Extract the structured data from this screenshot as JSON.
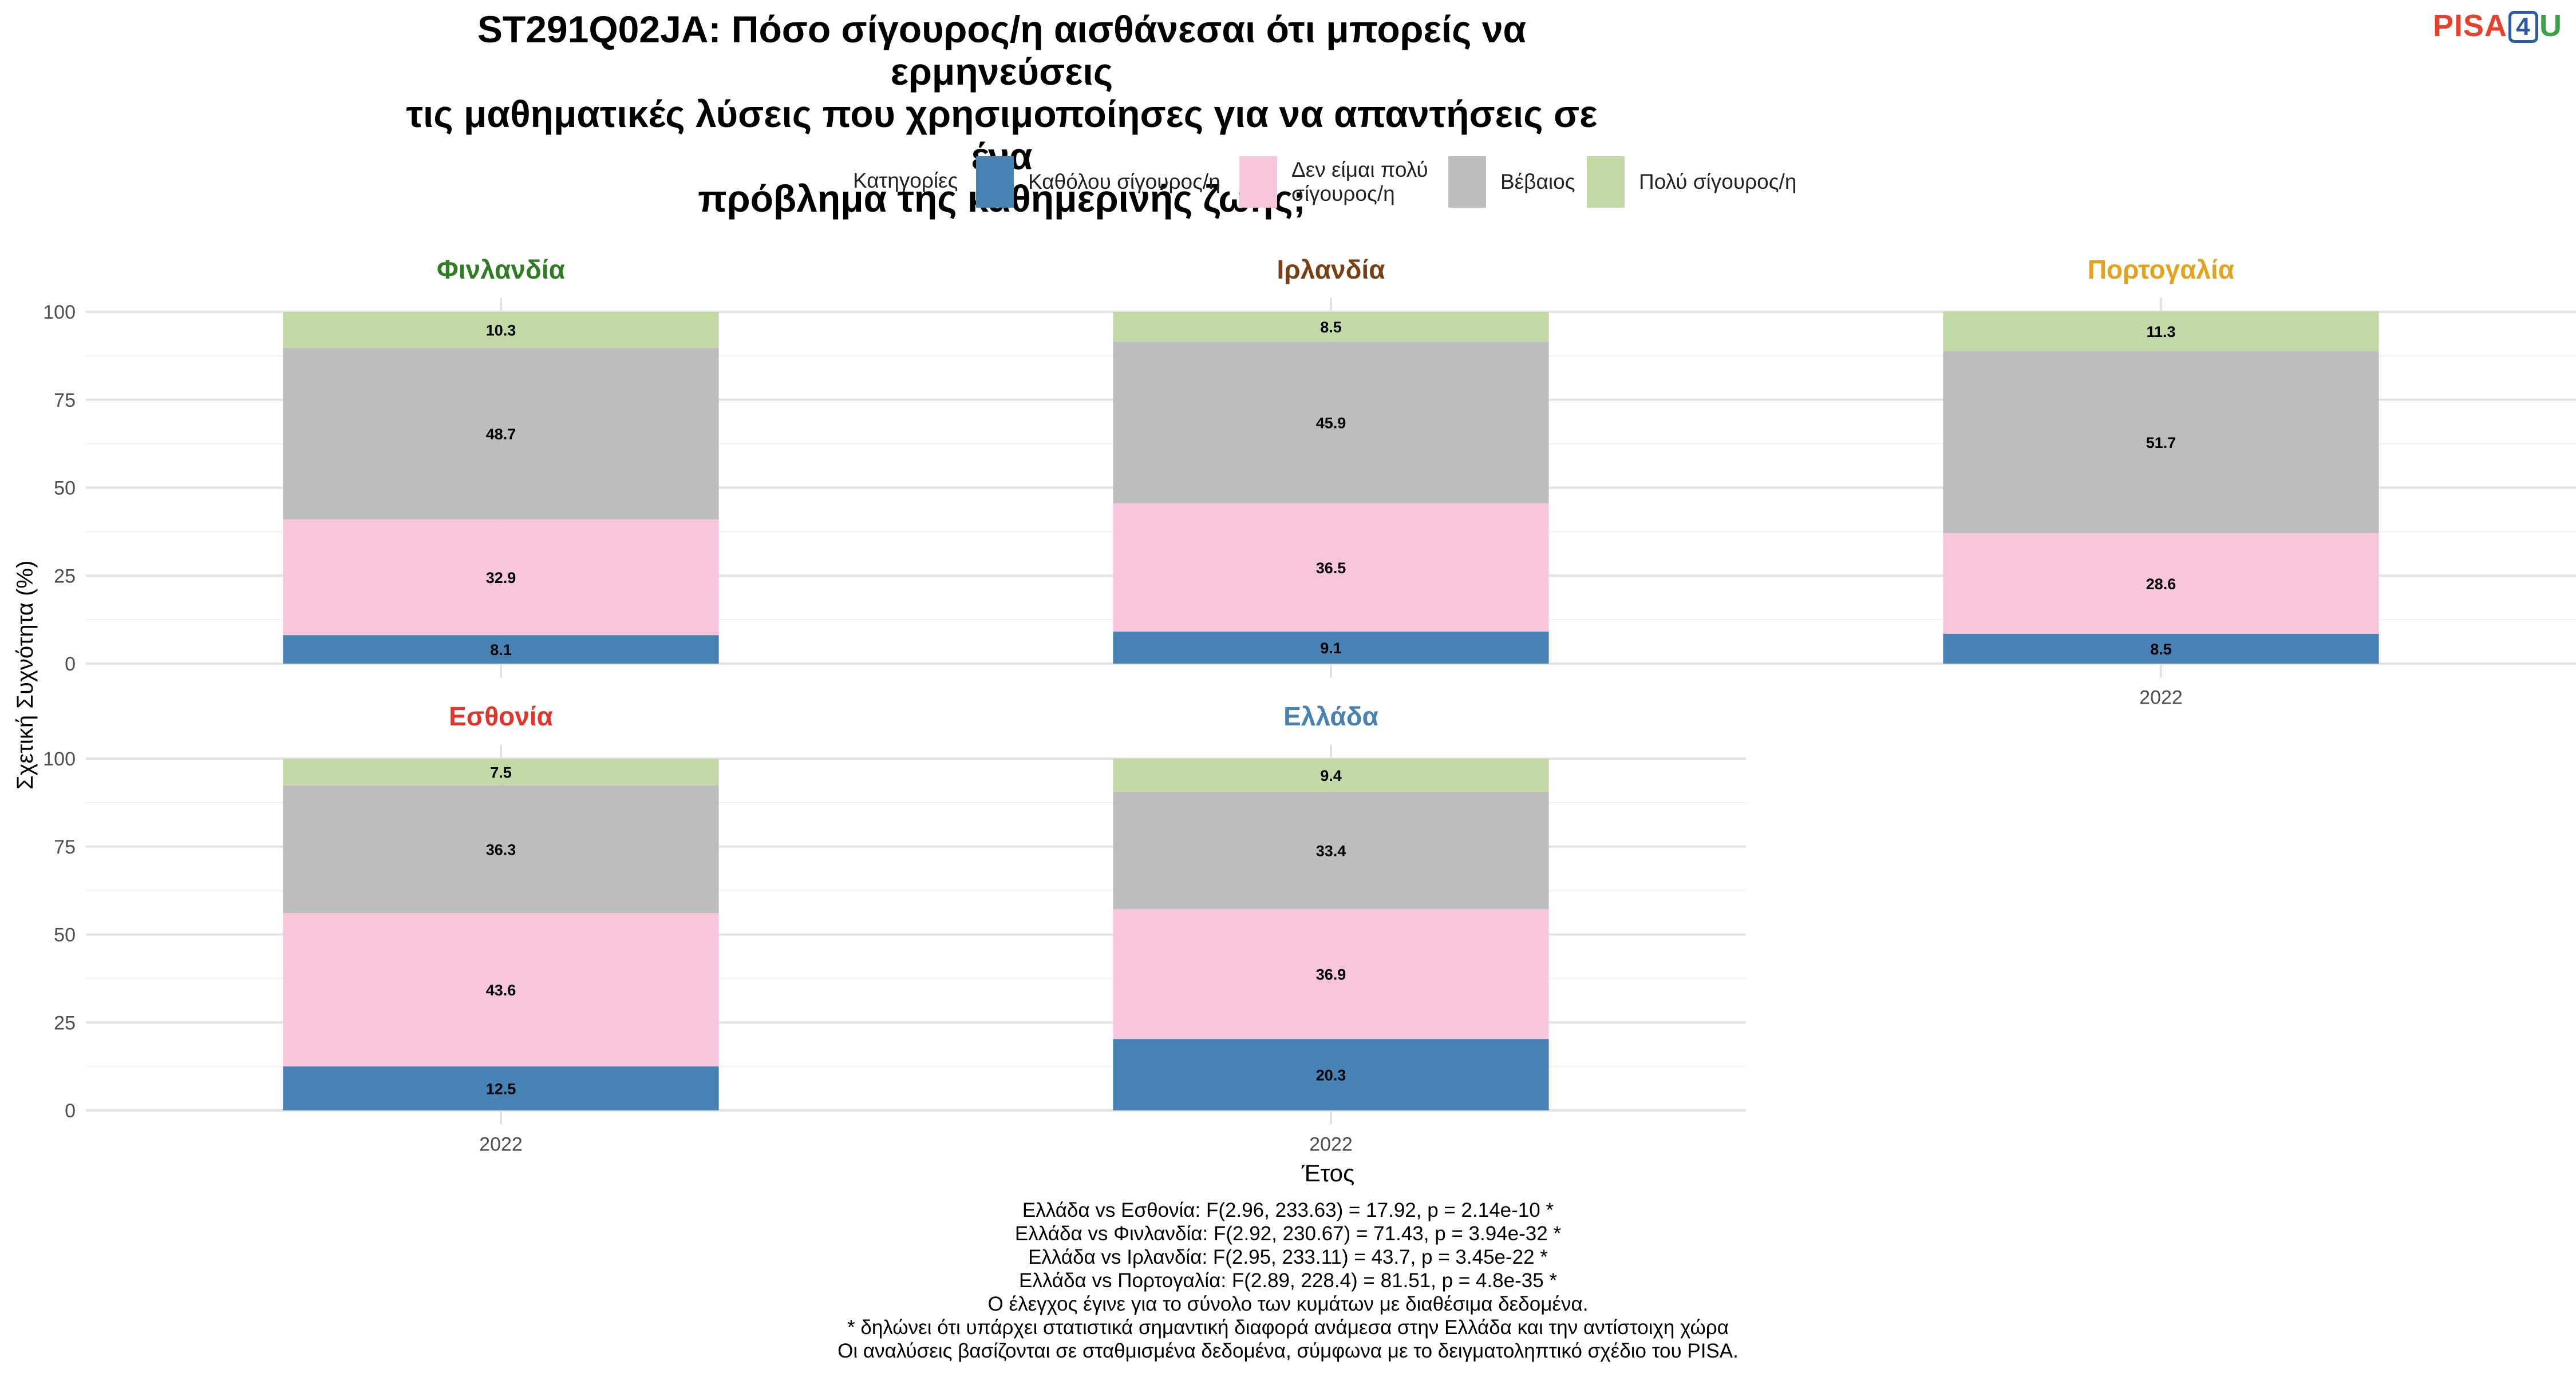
{
  "title_lines": [
    "ST291Q02JA: Πόσο σίγουρος/η αισθάνεσαι ότι μπορείς να ερμηνεύσεις",
    "τις μαθηματικές λύσεις που χρησιμοποίησες για να απαντήσεις σε ένα",
    "πρόβλημα της καθημερινής ζωής;"
  ],
  "logo": {
    "part1": "PISA",
    "part2": "4",
    "part3": "U"
  },
  "legend": {
    "title": "Κατηγορίες",
    "items": [
      {
        "label_lines": [
          "Καθόλου σίγουρος/η"
        ],
        "color": "#4682b4"
      },
      {
        "label_lines": [
          "Δεν είμαι πολύ",
          "σίγουρος/η"
        ],
        "color": "#f7c6dc"
      },
      {
        "label_lines": [
          "Βέβαιος"
        ],
        "color": "#bdbdbd"
      },
      {
        "label_lines": [
          "Πολύ σίγουρος/η"
        ],
        "color": "#c2d9a6"
      }
    ]
  },
  "chart_data": {
    "type": "bar",
    "stacked": true,
    "xlabel": "Έτος",
    "ylabel": "Σχετική Συχνότητα (%)",
    "ylim": [
      0,
      100
    ],
    "yticks": [
      0,
      25,
      50,
      75,
      100
    ],
    "grid": true,
    "legend_position": "top",
    "series_names": [
      "Καθόλου σίγουρος/η",
      "Δεν είμαι πολύ σίγουρος/η",
      "Βέβαιος",
      "Πολύ σίγουρος/η"
    ],
    "colors": [
      "#4682b4",
      "#f7c6dc",
      "#bdbdbd",
      "#c2d9a6"
    ],
    "panels": [
      {
        "country": "Φινλανδία",
        "title_color": "#2e7d22",
        "category": "2022",
        "values": [
          8.1,
          32.9,
          48.7,
          10.3
        ],
        "show_y_ticks": true,
        "show_x_tick": false
      },
      {
        "country": "Ιρλανδία",
        "title_color": "#7a3f12",
        "category": "2022",
        "values": [
          9.1,
          36.5,
          45.9,
          8.5
        ],
        "show_y_ticks": false,
        "show_x_tick": false
      },
      {
        "country": "Πορτογαλία",
        "title_color": "#e3a21a",
        "category": "2022",
        "values": [
          8.5,
          28.6,
          51.7,
          11.3
        ],
        "show_y_ticks": false,
        "show_x_tick": true
      },
      {
        "country": "Εσθονία",
        "title_color": "#e3332a",
        "category": "2022",
        "values": [
          12.5,
          43.6,
          36.3,
          7.5
        ],
        "show_y_ticks": true,
        "show_x_tick": true
      },
      {
        "country": "Ελλάδα",
        "title_color": "#4682b4",
        "category": "2022",
        "values": [
          20.3,
          36.9,
          33.4,
          9.4
        ],
        "show_y_ticks": false,
        "show_x_tick": true
      }
    ]
  },
  "caption_lines": [
    "Ελλάδα vs Εσθονία: F(2.96, 233.63) = 17.92, p = 2.14e-10 *",
    "Ελλάδα vs Φινλανδία: F(2.92, 230.67) = 71.43, p = 3.94e-32 *",
    "Ελλάδα vs Ιρλανδία: F(2.95, 233.11) = 43.7, p = 3.45e-22 *",
    "Ελλάδα vs Πορτογαλία: F(2.89, 228.4) = 81.51, p = 4.8e-35 *",
    "Ο έλεγχος έγινε για το σύνολο των κυμάτων με διαθέσιμα δεδομένα.",
    "* δηλώνει ότι υπάρχει στατιστικά σημαντική διαφορά ανάμεσα στην Ελλάδα και την αντίστοιχη χώρα",
    "Οι αναλύσεις βασίζονται σε σταθμισμένα δεδομένα, σύμφωνα με το δειγματοληπτικό σχέδιο του PISA."
  ]
}
